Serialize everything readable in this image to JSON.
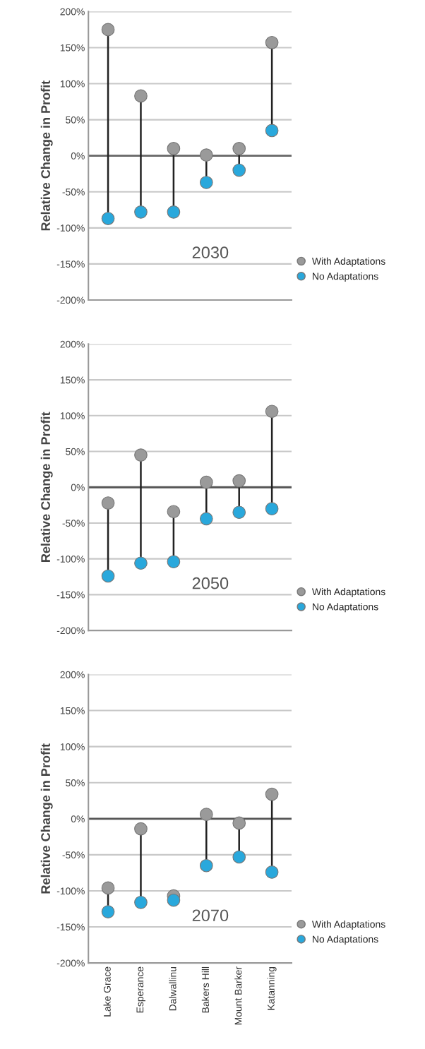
{
  "chart_data": [
    {
      "type": "scatter",
      "ylabel": "Relative Change in Profit",
      "annotations": [
        "2030"
      ],
      "categories": [
        null,
        null,
        null,
        null,
        null,
        null
      ],
      "series": [
        {
          "name": "With Adaptations",
          "color": "#9a9a9a",
          "values": [
            175,
            83,
            10,
            1,
            10,
            157
          ]
        },
        {
          "name": "No Adaptations",
          "color": "#29a8dc",
          "values": [
            -87,
            -78,
            -78,
            -37,
            -20,
            35
          ]
        }
      ],
      "ylim": [
        -200,
        200
      ],
      "yticks": [
        {
          "value": -200,
          "label": "-200%"
        },
        {
          "value": -150,
          "label": "-150%"
        },
        {
          "value": -100,
          "label": "-100%"
        },
        {
          "value": -50,
          "label": "-50%"
        },
        {
          "value": 0,
          "label": "0%"
        },
        {
          "value": 50,
          "label": "50%"
        },
        {
          "value": 100,
          "label": "100%"
        },
        {
          "value": 150,
          "label": "150%"
        },
        {
          "value": 200,
          "label": "200%"
        }
      ],
      "ref_lines": [
        {
          "axis": "y",
          "value": 0,
          "color": "#666666"
        }
      ],
      "grid": "y",
      "legend": "bottom right",
      "marker": "circle",
      "tick_labels": "y"
    },
    {
      "type": "scatter",
      "ylabel": "Relative Change in Profit",
      "annotations": [
        "2050"
      ],
      "categories": [
        null,
        null,
        null,
        null,
        null,
        null
      ],
      "series": [
        {
          "name": "With Adaptations",
          "color": "#9a9a9a",
          "values": [
            -22,
            45,
            -34,
            7,
            9,
            106
          ]
        },
        {
          "name": "No Adaptations",
          "color": "#29a8dc",
          "values": [
            -124,
            -106,
            -104,
            -44,
            -35,
            -30
          ]
        }
      ],
      "ylim": [
        -200,
        200
      ],
      "yticks": [
        {
          "value": -200,
          "label": "-200%"
        },
        {
          "value": -150,
          "label": "-150%"
        },
        {
          "value": -100,
          "label": "-100%"
        },
        {
          "value": -50,
          "label": "-50%"
        },
        {
          "value": 0,
          "label": "0%"
        },
        {
          "value": 50,
          "label": "50%"
        },
        {
          "value": 100,
          "label": "100%"
        },
        {
          "value": 150,
          "label": "150%"
        },
        {
          "value": 200,
          "label": "200%"
        }
      ],
      "ref_lines": [
        {
          "axis": "y",
          "value": 0,
          "color": "#555555"
        }
      ],
      "grid": "y",
      "legend": "bottom right",
      "marker": "circle",
      "tick_labels": "y"
    },
    {
      "type": "scatter",
      "ylabel": "Relative Change in Profit",
      "annotations": [
        "2070"
      ],
      "categories": [
        "Lake Grace",
        "Esperance",
        "Dalwallinu",
        "Bakers Hill",
        "Mount Barker",
        "Katanning"
      ],
      "series": [
        {
          "name": "With Adaptations",
          "color": "#9a9a9a",
          "values": [
            -96,
            -14,
            -107,
            6,
            -6,
            34
          ]
        },
        {
          "name": "No Adaptations",
          "color": "#29a8dc",
          "values": [
            -129,
            -116,
            -113,
            -65,
            -53,
            -74
          ]
        }
      ],
      "ylim": [
        -200,
        200
      ],
      "yticks": [
        {
          "value": -200,
          "label": "-200%"
        },
        {
          "value": -150,
          "label": "-150%"
        },
        {
          "value": -100,
          "label": "-100%"
        },
        {
          "value": -50,
          "label": "-50%"
        },
        {
          "value": 0,
          "label": "0%"
        },
        {
          "value": 50,
          "label": "50%"
        },
        {
          "value": 100,
          "label": "100%"
        },
        {
          "value": 150,
          "label": "150%"
        },
        {
          "value": 200,
          "label": "200%"
        }
      ],
      "ref_lines": [
        {
          "axis": "y",
          "value": 0,
          "color": "#555555"
        }
      ],
      "grid": "y",
      "legend": "bottom right",
      "marker": "circle"
    }
  ]
}
